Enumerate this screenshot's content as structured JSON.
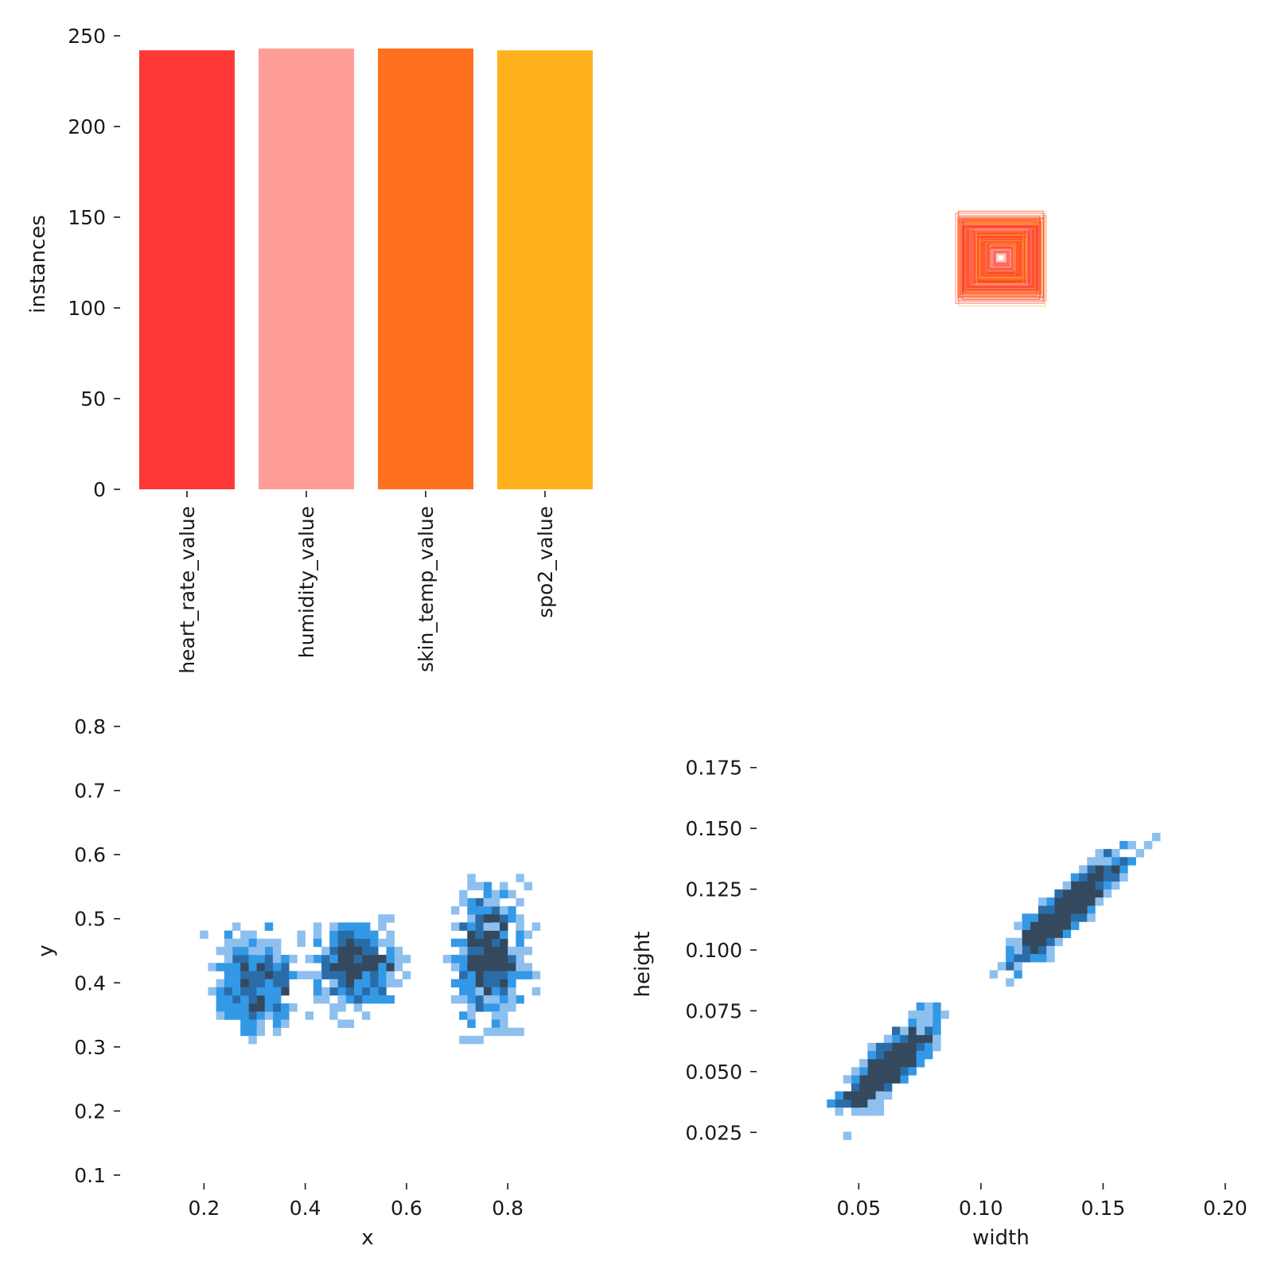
{
  "chart_data": [
    {
      "type": "bar",
      "ylabel": "instances",
      "ylim": [
        0,
        250
      ],
      "yticks": [
        0,
        50,
        100,
        150,
        200,
        250
      ],
      "categories": [
        "heart_rate_value",
        "humidity_value",
        "skin_temp_value",
        "spo2_value"
      ],
      "values": [
        242,
        243,
        243,
        242
      ],
      "colors": [
        "#ff3838",
        "#ff9d97",
        "#ff701f",
        "#ffb21d"
      ]
    },
    {
      "type": "other",
      "description_colors": [
        "#ff3838",
        "#ff701f",
        "#ffb21d",
        "#ff9d97"
      ]
    },
    {
      "type": "heatmap",
      "xlabel": "x",
      "ylabel": "y",
      "xlim": [
        0.08,
        0.96
      ],
      "ylim": [
        0.09,
        0.81
      ],
      "xticks": [
        0.2,
        0.4,
        0.6,
        0.8
      ],
      "yticks": [
        0.1,
        0.2,
        0.3,
        0.4,
        0.5,
        0.6,
        0.7,
        0.8
      ],
      "colors": [
        "#8ec0ef",
        "#3399e6",
        "#2a6ca8",
        "#34495e"
      ]
    },
    {
      "type": "heatmap",
      "xlabel": "width",
      "ylabel": "height",
      "xlim": [
        0.017,
        0.2
      ],
      "ylim": [
        0.012,
        0.188
      ],
      "xticks": [
        0.05,
        0.1,
        0.15,
        0.2
      ],
      "yticks": [
        0.025,
        0.05,
        0.075,
        0.1,
        0.125,
        0.15,
        0.175
      ],
      "colors": [
        "#8ec0ef",
        "#3399e6",
        "#2a6ca8",
        "#34495e"
      ]
    }
  ]
}
